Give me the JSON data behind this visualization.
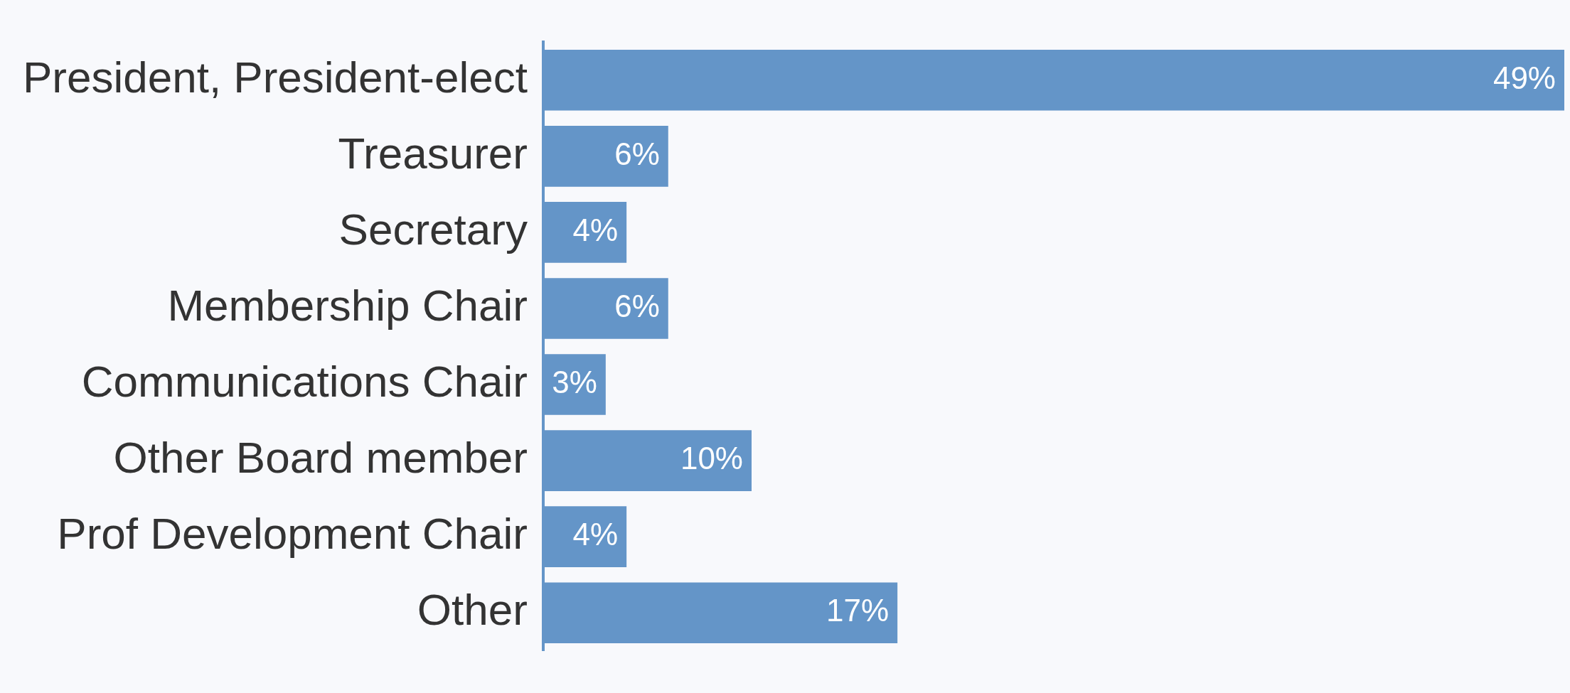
{
  "chart_data": {
    "type": "bar",
    "orientation": "horizontal",
    "categories": [
      "President, President-elect",
      "Treasurer",
      "Secretary",
      "Membership Chair",
      "Communications Chair",
      "Other Board member",
      "Prof Development Chair",
      "Other"
    ],
    "values": [
      49,
      6,
      4,
      6,
      3,
      10,
      4,
      17
    ],
    "color": "#6495c8",
    "value_labels": [
      "49%",
      "6%",
      "4%",
      "6%",
      "3%",
      "10%",
      "4%",
      "17%"
    ],
    "grid": false,
    "legend": false,
    "tick_labels": "y"
  }
}
